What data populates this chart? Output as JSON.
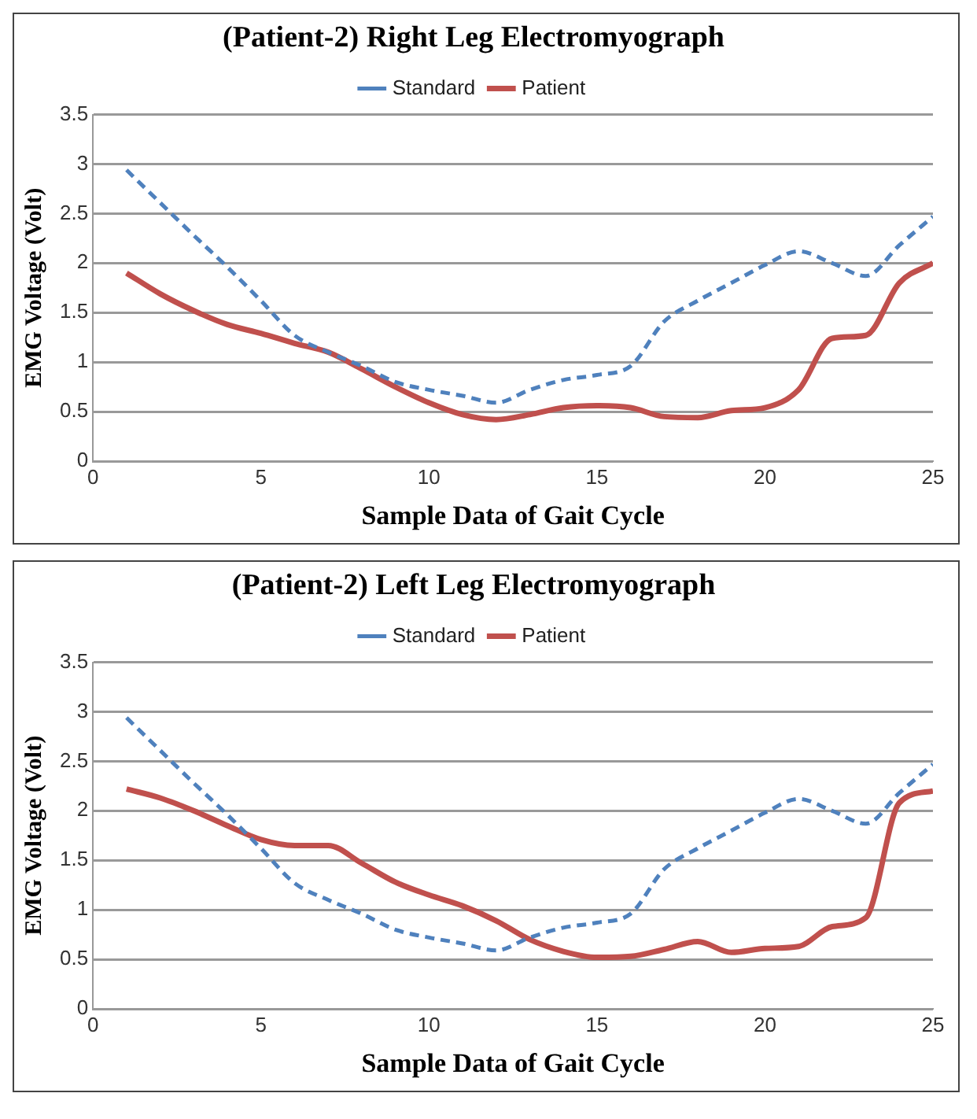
{
  "chart_data": [
    {
      "type": "line",
      "title": "(Patient-2) Right Leg Electromyograph",
      "xlabel": "Sample Data of Gait Cycle",
      "ylabel": "EMG Voltage (Volt)",
      "x": [
        1,
        2,
        3,
        4,
        5,
        6,
        7,
        8,
        9,
        10,
        11,
        12,
        13,
        14,
        15,
        16,
        17,
        18,
        19,
        20,
        21,
        22,
        23,
        24,
        25
      ],
      "xlim": [
        0,
        25
      ],
      "xticks": [
        0,
        5,
        10,
        15,
        20,
        25
      ],
      "ylim": [
        0,
        3.5
      ],
      "yticks": [
        0,
        0.5,
        1,
        1.5,
        2,
        2.5,
        3,
        3.5
      ],
      "grid": "y",
      "legend": "top",
      "marker": "none",
      "series": [
        {
          "name": "Standard",
          "color": "#4f81bd",
          "line_style": "dashed",
          "values": [
            2.94,
            2.61,
            2.28,
            1.96,
            1.62,
            1.27,
            1.1,
            0.96,
            0.8,
            0.72,
            0.66,
            0.59,
            0.72,
            0.82,
            0.87,
            0.96,
            1.41,
            1.62,
            1.8,
            1.98,
            2.12,
            2.0,
            1.87,
            2.18,
            2.47
          ]
        },
        {
          "name": "Patient",
          "color": "#c0504d",
          "line_style": "solid",
          "values": [
            1.9,
            1.69,
            1.52,
            1.38,
            1.29,
            1.19,
            1.1,
            0.93,
            0.75,
            0.59,
            0.47,
            0.42,
            0.47,
            0.54,
            0.56,
            0.54,
            0.45,
            0.44,
            0.51,
            0.54,
            0.72,
            1.24,
            1.27,
            1.8,
            2.0
          ]
        }
      ]
    },
    {
      "type": "line",
      "title": "(Patient-2) Left Leg Electromyograph",
      "xlabel": "Sample Data of Gait Cycle",
      "ylabel": "EMG Voltage (Volt)",
      "x": [
        1,
        2,
        3,
        4,
        5,
        6,
        7,
        8,
        9,
        10,
        11,
        12,
        13,
        14,
        15,
        16,
        17,
        18,
        19,
        20,
        21,
        22,
        23,
        24,
        25
      ],
      "xlim": [
        0,
        25
      ],
      "xticks": [
        0,
        5,
        10,
        15,
        20,
        25
      ],
      "ylim": [
        0,
        3.5
      ],
      "yticks": [
        0,
        0.5,
        1,
        1.5,
        2,
        2.5,
        3,
        3.5
      ],
      "grid": "y",
      "legend": "top",
      "marker": "none",
      "series": [
        {
          "name": "Standard",
          "color": "#4f81bd",
          "line_style": "dashed",
          "values": [
            2.94,
            2.61,
            2.28,
            1.96,
            1.62,
            1.27,
            1.1,
            0.96,
            0.8,
            0.72,
            0.66,
            0.59,
            0.72,
            0.82,
            0.87,
            0.96,
            1.41,
            1.62,
            1.8,
            1.98,
            2.12,
            2.0,
            1.87,
            2.18,
            2.47
          ]
        },
        {
          "name": "Patient",
          "color": "#c0504d",
          "line_style": "solid",
          "values": [
            2.22,
            2.13,
            2.0,
            1.85,
            1.71,
            1.65,
            1.65,
            1.47,
            1.28,
            1.15,
            1.04,
            0.89,
            0.7,
            0.58,
            0.52,
            0.53,
            0.6,
            0.68,
            0.57,
            0.61,
            0.63,
            0.83,
            0.92,
            2.08,
            2.2
          ]
        }
      ]
    }
  ]
}
